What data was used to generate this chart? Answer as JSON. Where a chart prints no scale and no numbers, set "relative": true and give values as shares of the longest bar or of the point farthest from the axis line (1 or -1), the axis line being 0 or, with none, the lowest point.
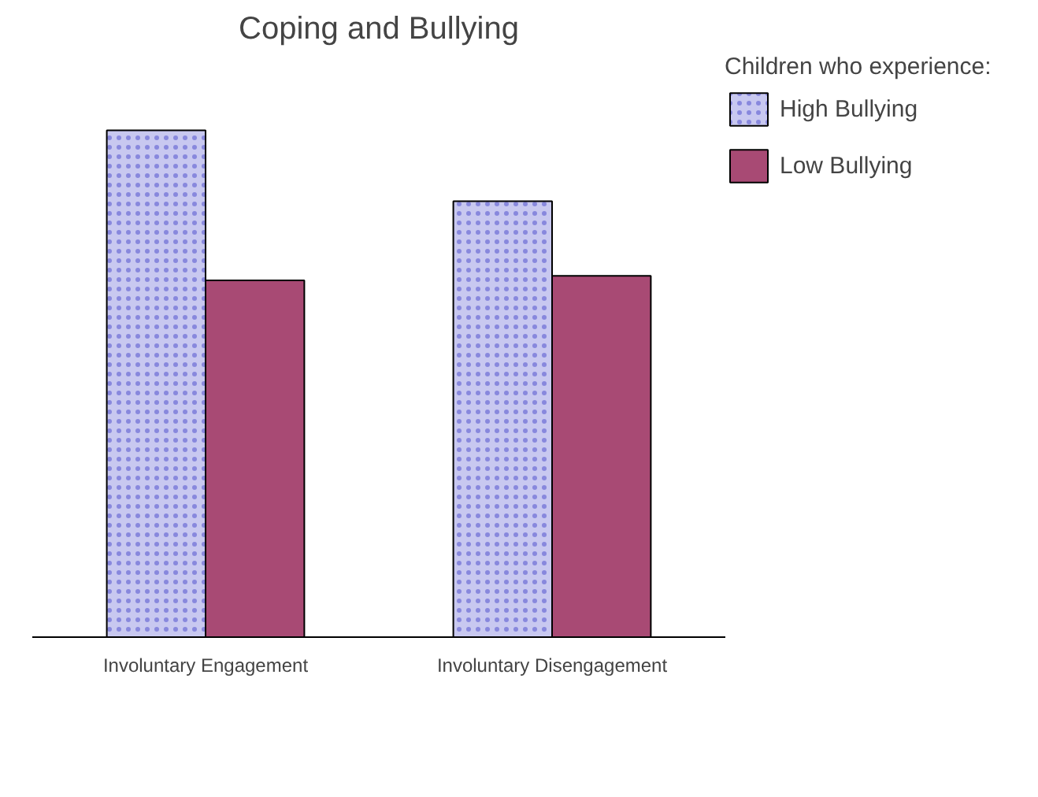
{
  "chart_data": {
    "type": "bar",
    "title": "Coping and Bullying",
    "relative": true,
    "categories": [
      "Involuntary Engagement",
      "Involuntary Disengagement"
    ],
    "series": [
      {
        "name": "High Bullying",
        "color": "#c8c8f0",
        "values": [
          1,
          0.86
        ]
      },
      {
        "name": "Low Bullying",
        "color": "#a84a74",
        "values": [
          0.704,
          0.713
        ]
      }
    ],
    "legend_title": "Children who experience:",
    "legend": "right",
    "grid": false
  }
}
